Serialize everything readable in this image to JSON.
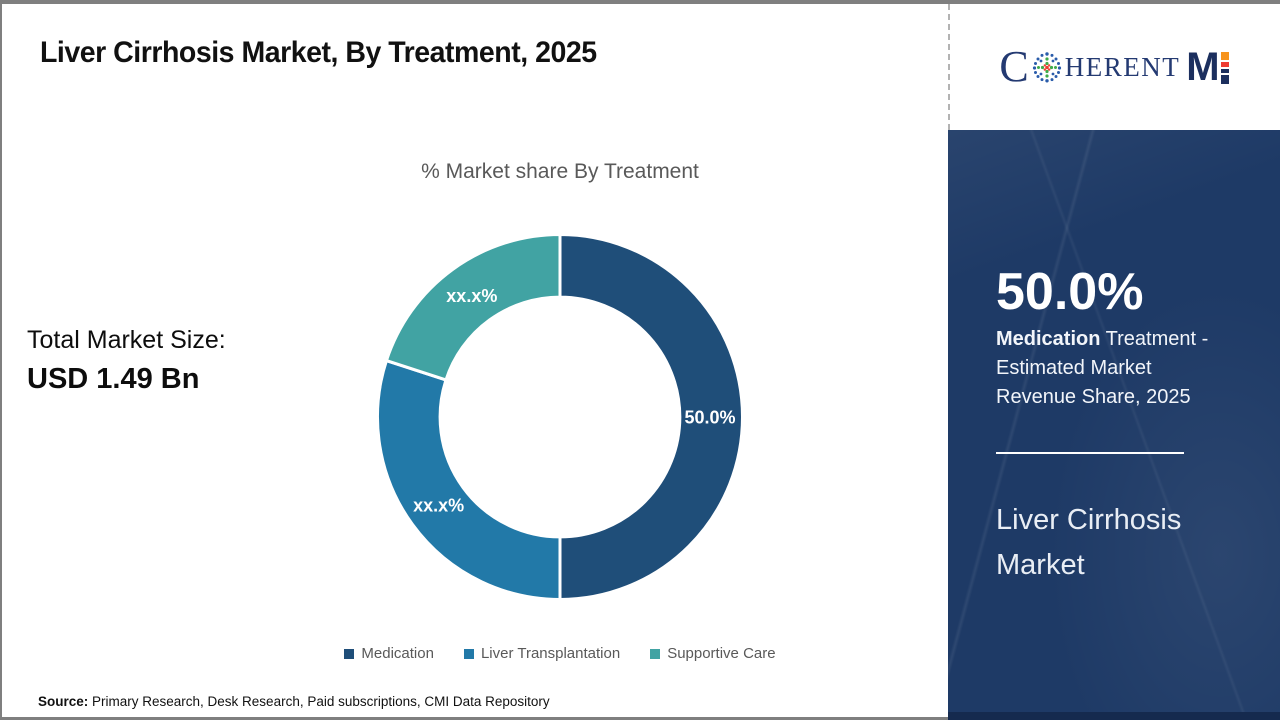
{
  "header": {
    "title": "Liver Cirrhosis Market, By Treatment, 2025",
    "brand": "CoherentMI",
    "logo": {
      "part_c": "C",
      "part_herent": "HERENT",
      "part_m": "M"
    }
  },
  "chart_data": {
    "type": "pie",
    "title": "% Market share By Treatment",
    "donut_hole_ratio": 0.657,
    "start_angle_deg": 0,
    "direction": "clockwise",
    "legend_position": "bottom",
    "segments": [
      {
        "name": "Medication",
        "value": 50.0,
        "label": "50.0%",
        "color": "#1f4e79"
      },
      {
        "name": "Liver Transplantation",
        "value": 30.0,
        "label": "xx.x%",
        "color": "#2279a8"
      },
      {
        "name": "Supportive Care",
        "value": 20.0,
        "label": "xx.x%",
        "color": "#41a3a3"
      }
    ]
  },
  "left_panel": {
    "total_label": "Total Market Size:",
    "total_value": "USD 1.49 Bn"
  },
  "sidebar": {
    "background_color": "#1e3a66",
    "stat_value": "50.0%",
    "stat_desc_bold": "Medication",
    "stat_desc_line1_rest": " Treatment -",
    "stat_desc_line2": "Estimated Market",
    "stat_desc_line3": "Revenue Share, 2025",
    "market_name_line1": "Liver Cirrhosis",
    "market_name_line2": "Market"
  },
  "footer": {
    "source_label": "Source:",
    "source_text": " Primary Research, Desk Research, Paid subscriptions, CMI Data Repository"
  }
}
